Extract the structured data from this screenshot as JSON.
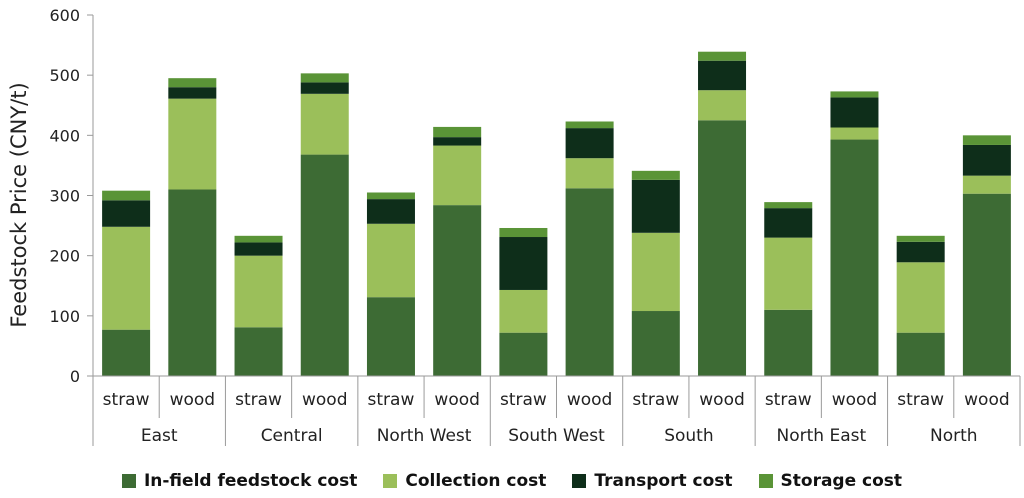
{
  "chart_data": {
    "type": "bar",
    "stacked": true,
    "ylabel": "Feedstock Price (CNY/t)",
    "ylim": [
      0,
      600
    ],
    "yticks": [
      0,
      100,
      200,
      300,
      400,
      500,
      600
    ],
    "grid": false,
    "legend_position": "bottom",
    "groups": [
      "East",
      "Central",
      "North West",
      "South West",
      "South",
      "North East",
      "North"
    ],
    "subcategories": [
      "straw",
      "wood"
    ],
    "categories": [
      "East straw",
      "East wood",
      "Central straw",
      "Central wood",
      "North West straw",
      "North West wood",
      "South West straw",
      "South West wood",
      "South straw",
      "South wood",
      "North East straw",
      "North East wood",
      "North straw",
      "North wood"
    ],
    "series": [
      {
        "name": "In-field feedstock cost",
        "color": "#3d6b34",
        "values": [
          77,
          310,
          81,
          368,
          131,
          284,
          72,
          312,
          108,
          425,
          110,
          393,
          72,
          303
        ]
      },
      {
        "name": "Collection cost",
        "color": "#9bbf5a",
        "values": [
          171,
          151,
          119,
          101,
          122,
          99,
          71,
          50,
          130,
          50,
          120,
          20,
          117,
          30
        ]
      },
      {
        "name": "Transport cost",
        "color": "#0e2e1a",
        "values": [
          44,
          19,
          22,
          19,
          41,
          14,
          88,
          50,
          88,
          49,
          49,
          50,
          34,
          51
        ]
      },
      {
        "name": "Storage cost",
        "color": "#5a9437",
        "values": [
          16,
          15,
          11,
          15,
          11,
          17,
          15,
          11,
          15,
          15,
          10,
          10,
          10,
          16
        ]
      }
    ]
  }
}
